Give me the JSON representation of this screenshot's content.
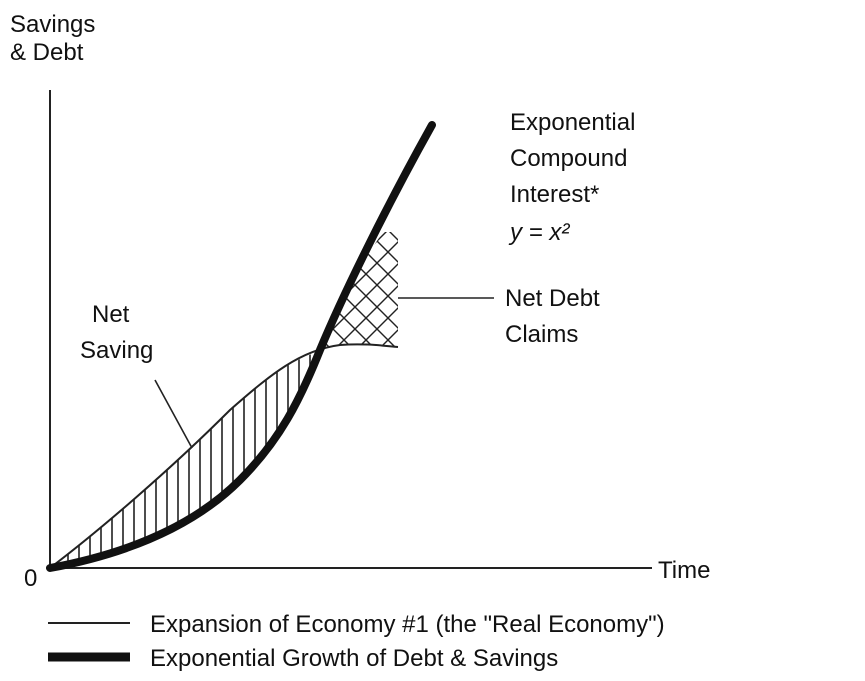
{
  "y_axis_label": [
    "Savings",
    "& Debt"
  ],
  "origin_label": "0",
  "x_axis_label": "Time",
  "annotations": {
    "exponential": [
      "Exponential",
      "Compound",
      "Interest*",
      "y = x²"
    ],
    "net_debt": [
      "Net Debt",
      "Claims"
    ],
    "net_saving": [
      "Net",
      "Saving"
    ]
  },
  "legend": [
    "Expansion of Economy #1 (the \"Real Economy\")",
    "Exponential Growth of Debt & Savings"
  ]
}
